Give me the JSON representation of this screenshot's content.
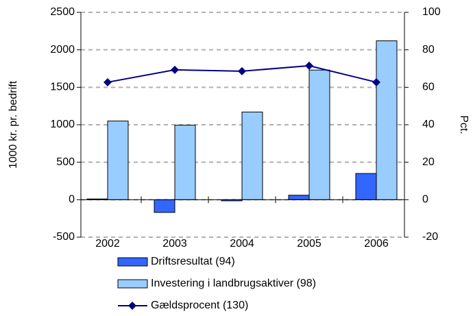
{
  "chart_data": {
    "type": "bar",
    "categories": [
      "2002",
      "2003",
      "2004",
      "2005",
      "2006"
    ],
    "series": [
      {
        "name": "Driftsresultat (94)",
        "color": "#3366ff",
        "values": [
          10,
          -170,
          -15,
          60,
          350
        ]
      },
      {
        "name": "Investering i landbrugsaktiver (98)",
        "color": "#99ccff",
        "values": [
          1050,
          995,
          1170,
          1730,
          2120
        ]
      },
      {
        "name": "Gældsprocent (130)",
        "type": "line",
        "axis": "y2",
        "color": "#000080",
        "values": [
          62.7,
          69.3,
          68.6,
          71.5,
          62.7
        ]
      }
    ],
    "ylabel": "1000 kr. pr. bedrift",
    "y2label": "Pct.",
    "ylim": [
      -500,
      2500
    ],
    "yticks": [
      -500,
      0,
      500,
      1000,
      1500,
      2000,
      2500
    ],
    "y2lim": [
      -20,
      100
    ],
    "y2ticks": [
      -20,
      0,
      20,
      40,
      60,
      80,
      100
    ],
    "grid": true,
    "legend": "bottom"
  }
}
